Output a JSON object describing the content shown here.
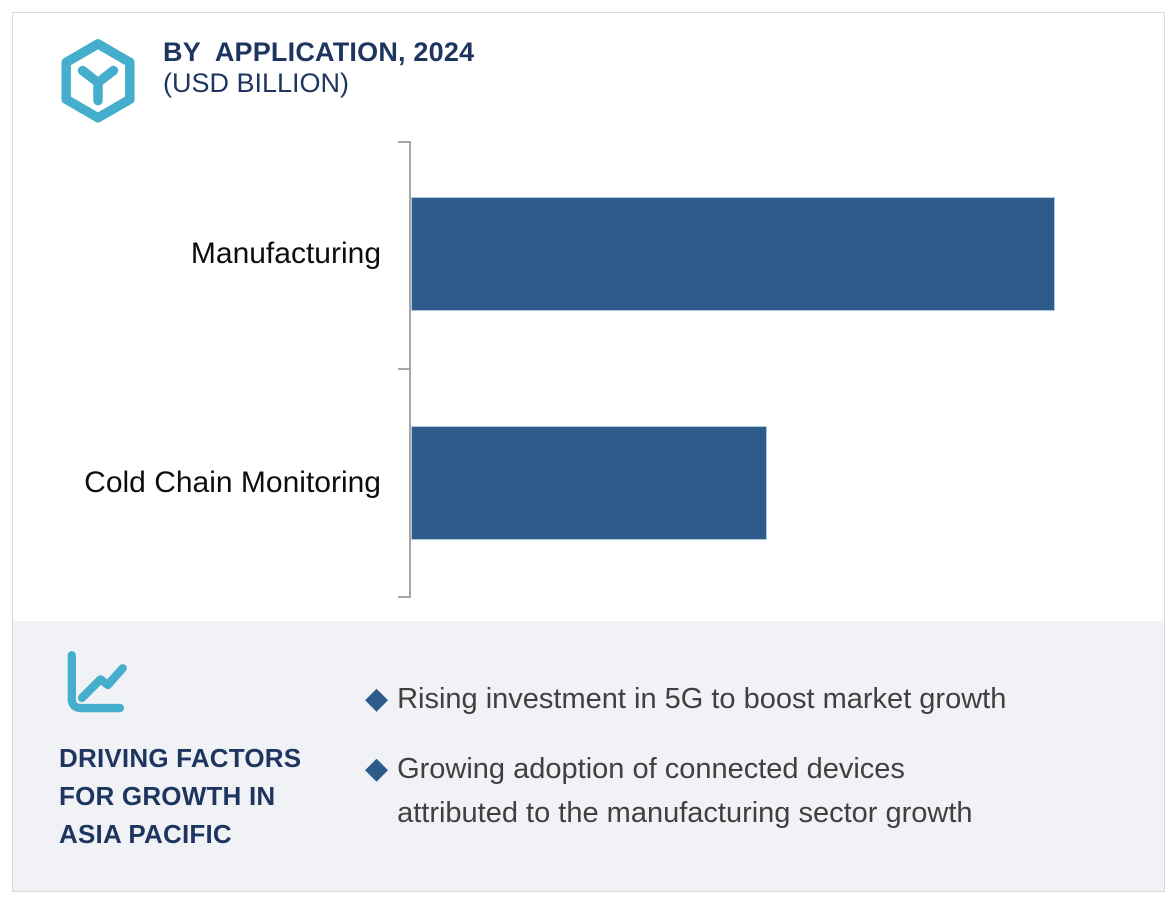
{
  "header": {
    "logo_icon": "hexagon-y-logo",
    "title_line1": "BY  APPLICATION, 2024",
    "title_line2": "(USD BILLION)"
  },
  "chart_data": {
    "type": "bar",
    "orientation": "horizontal",
    "title": "BY APPLICATION, 2024 (USD BILLION)",
    "categories": [
      "Manufacturing",
      "Cold Chain Monitoring"
    ],
    "values_relative": [
      1.0,
      0.553
    ],
    "value_axis_labels_shown": false,
    "data_labels_shown": false,
    "grid": false,
    "legend": false,
    "bar_color": "#2e5c8a",
    "axis_color": "#a6a6a6"
  },
  "driving_factors": {
    "icon": "line-chart-icon",
    "heading_lines": [
      "DRIVING FACTORS",
      "FOR GROWTH IN",
      "ASIA PACIFIC"
    ],
    "bullet_marker": "◆",
    "bullets": [
      {
        "lines": [
          "Rising investment in 5G to boost market growth"
        ]
      },
      {
        "lines": [
          "Growing adoption of connected devices",
          "attributed to the manufacturing sector growth"
        ]
      }
    ],
    "panel_bg": "#f1f2f6"
  },
  "colors": {
    "navy": "#1e355f",
    "teal": "#44aecc",
    "bar_blue": "#2e5c8a",
    "axis_gray": "#a6a6a6",
    "bullet_text": "#404040",
    "frame_border": "#d9dae0"
  }
}
